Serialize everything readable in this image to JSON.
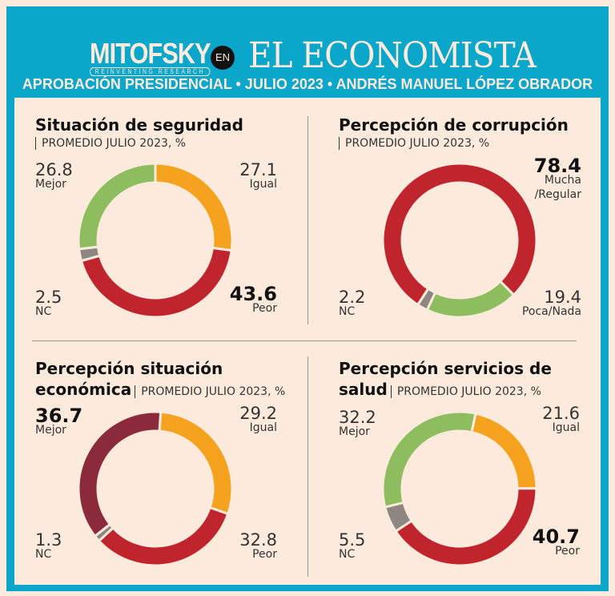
{
  "header": {
    "logo": "MITOFSKY",
    "logo_tagline": "REINVENTING RESEARCH",
    "connector": "EN",
    "publication": "EL ECONOMISTA",
    "subtitle": "APROBACIÓN PRESIDENCIAL • JULIO 2023 • ANDRÉS MANUEL LÓPEZ OBRADOR"
  },
  "colors": {
    "frame": "#0aa7cb",
    "background": "#fcebdc",
    "orange": "#f5a21f",
    "red": "#c0242c",
    "green": "#8dbd5e",
    "gray": "#8e8680",
    "dark_red": "#8a2a3a"
  },
  "chart_data": [
    {
      "type": "pie",
      "variant": "donut",
      "title": "Situación de seguridad",
      "note": "PROMEDIO JULIO 2023, %",
      "start_deg": 0,
      "slices": [
        {
          "label": "Igual",
          "value": 27.1,
          "color": "#f5a21f"
        },
        {
          "label": "Peor",
          "value": 43.6,
          "color": "#c0242c",
          "emphasis": true
        },
        {
          "label": "NC",
          "value": 2.5,
          "color": "#8e8680"
        },
        {
          "label": "Mejor",
          "value": 26.8,
          "color": "#8dbd5e"
        }
      ]
    },
    {
      "type": "pie",
      "variant": "donut",
      "title": "Percepción de corrupción",
      "note": "PROMEDIO JULIO 2023, %",
      "start_deg": -147,
      "slices": [
        {
          "label": "Mucha /Regular",
          "value": 78.4,
          "color": "#c0242c",
          "emphasis": true
        },
        {
          "label": "Poca/Nada",
          "value": 19.4,
          "color": "#8dbd5e"
        },
        {
          "label": "NC",
          "value": 2.2,
          "color": "#8e8680"
        }
      ]
    },
    {
      "type": "pie",
      "variant": "donut",
      "title": "Percepción situación económica",
      "title_line1": "Percepción situación",
      "title_line2": "económica",
      "note": "PROMEDIO JULIO 2023, %",
      "start_deg": 4,
      "slices": [
        {
          "label": "Igual",
          "value": 29.2,
          "color": "#f5a21f"
        },
        {
          "label": "Peor",
          "value": 32.8,
          "color": "#c0242c"
        },
        {
          "label": "NC",
          "value": 1.3,
          "color": "#8e8680"
        },
        {
          "label": "Mejor",
          "value": 36.7,
          "color": "#8a2a3a",
          "emphasis": true
        }
      ]
    },
    {
      "type": "pie",
      "variant": "donut",
      "title": "Percepción servicios de salud",
      "title_line1": "Percepción servicios de",
      "title_line2": "salud",
      "note": "PROMEDIO JULIO 2023, %",
      "start_deg": 12,
      "slices": [
        {
          "label": "Igual",
          "value": 21.6,
          "color": "#f5a21f"
        },
        {
          "label": "Peor",
          "value": 40.7,
          "color": "#c0242c",
          "emphasis": true
        },
        {
          "label": "NC",
          "value": 5.5,
          "color": "#8e8680"
        },
        {
          "label": "Mejor",
          "value": 32.2,
          "color": "#8dbd5e"
        }
      ]
    }
  ]
}
